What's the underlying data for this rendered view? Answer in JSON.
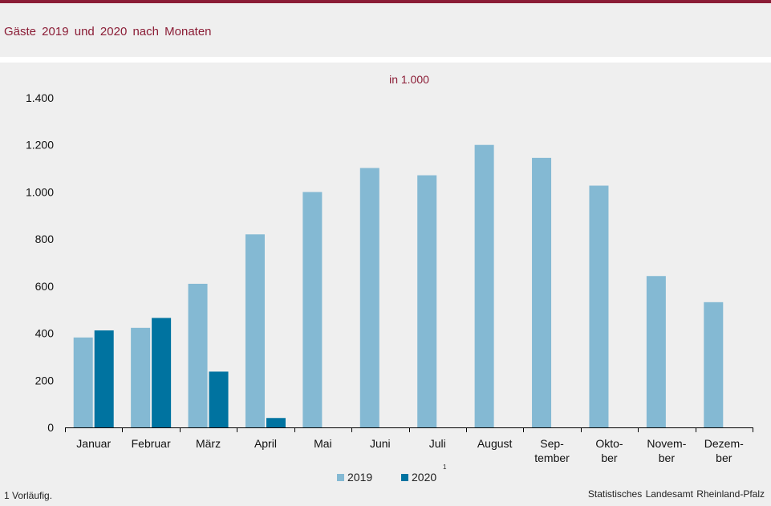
{
  "title": "Gäste 2019 und 2020 nach Monaten",
  "footnote": "1 Vorläufig.",
  "source": "Statistisches Landesamt Rheinland-Pfalz",
  "colors": {
    "accent": "#8b1d36",
    "series_2019": "#84b9d3",
    "series_2020": "#0073a0"
  },
  "chart_data": {
    "type": "bar",
    "unit_label": "in 1.000",
    "categories": [
      [
        "Januar"
      ],
      [
        "Februar"
      ],
      [
        "März"
      ],
      [
        "April"
      ],
      [
        "Mai"
      ],
      [
        "Juni"
      ],
      [
        "Juli"
      ],
      [
        "August"
      ],
      [
        "Sep-",
        "tember"
      ],
      [
        "Okto-",
        "ber"
      ],
      [
        "Novem-",
        "ber"
      ],
      [
        "Dezem-",
        "ber"
      ]
    ],
    "series": [
      {
        "name": "2019",
        "values": [
          382,
          423,
          610,
          820,
          1000,
          1102,
          1071,
          1200,
          1145,
          1027,
          643,
          532
        ]
      },
      {
        "name": "2020",
        "superscript": "1",
        "values": [
          412,
          465,
          237,
          40,
          null,
          null,
          null,
          null,
          null,
          null,
          null,
          null
        ]
      }
    ],
    "ylim": [
      0,
      1400
    ],
    "yticks": [
      0,
      200,
      400,
      600,
      800,
      1000,
      1200,
      1400
    ],
    "ytick_labels": [
      "0",
      "200",
      "400",
      "600",
      "800",
      "1.000",
      "1.200",
      "1.400"
    ],
    "grid": false,
    "legend": "bottom-center"
  }
}
